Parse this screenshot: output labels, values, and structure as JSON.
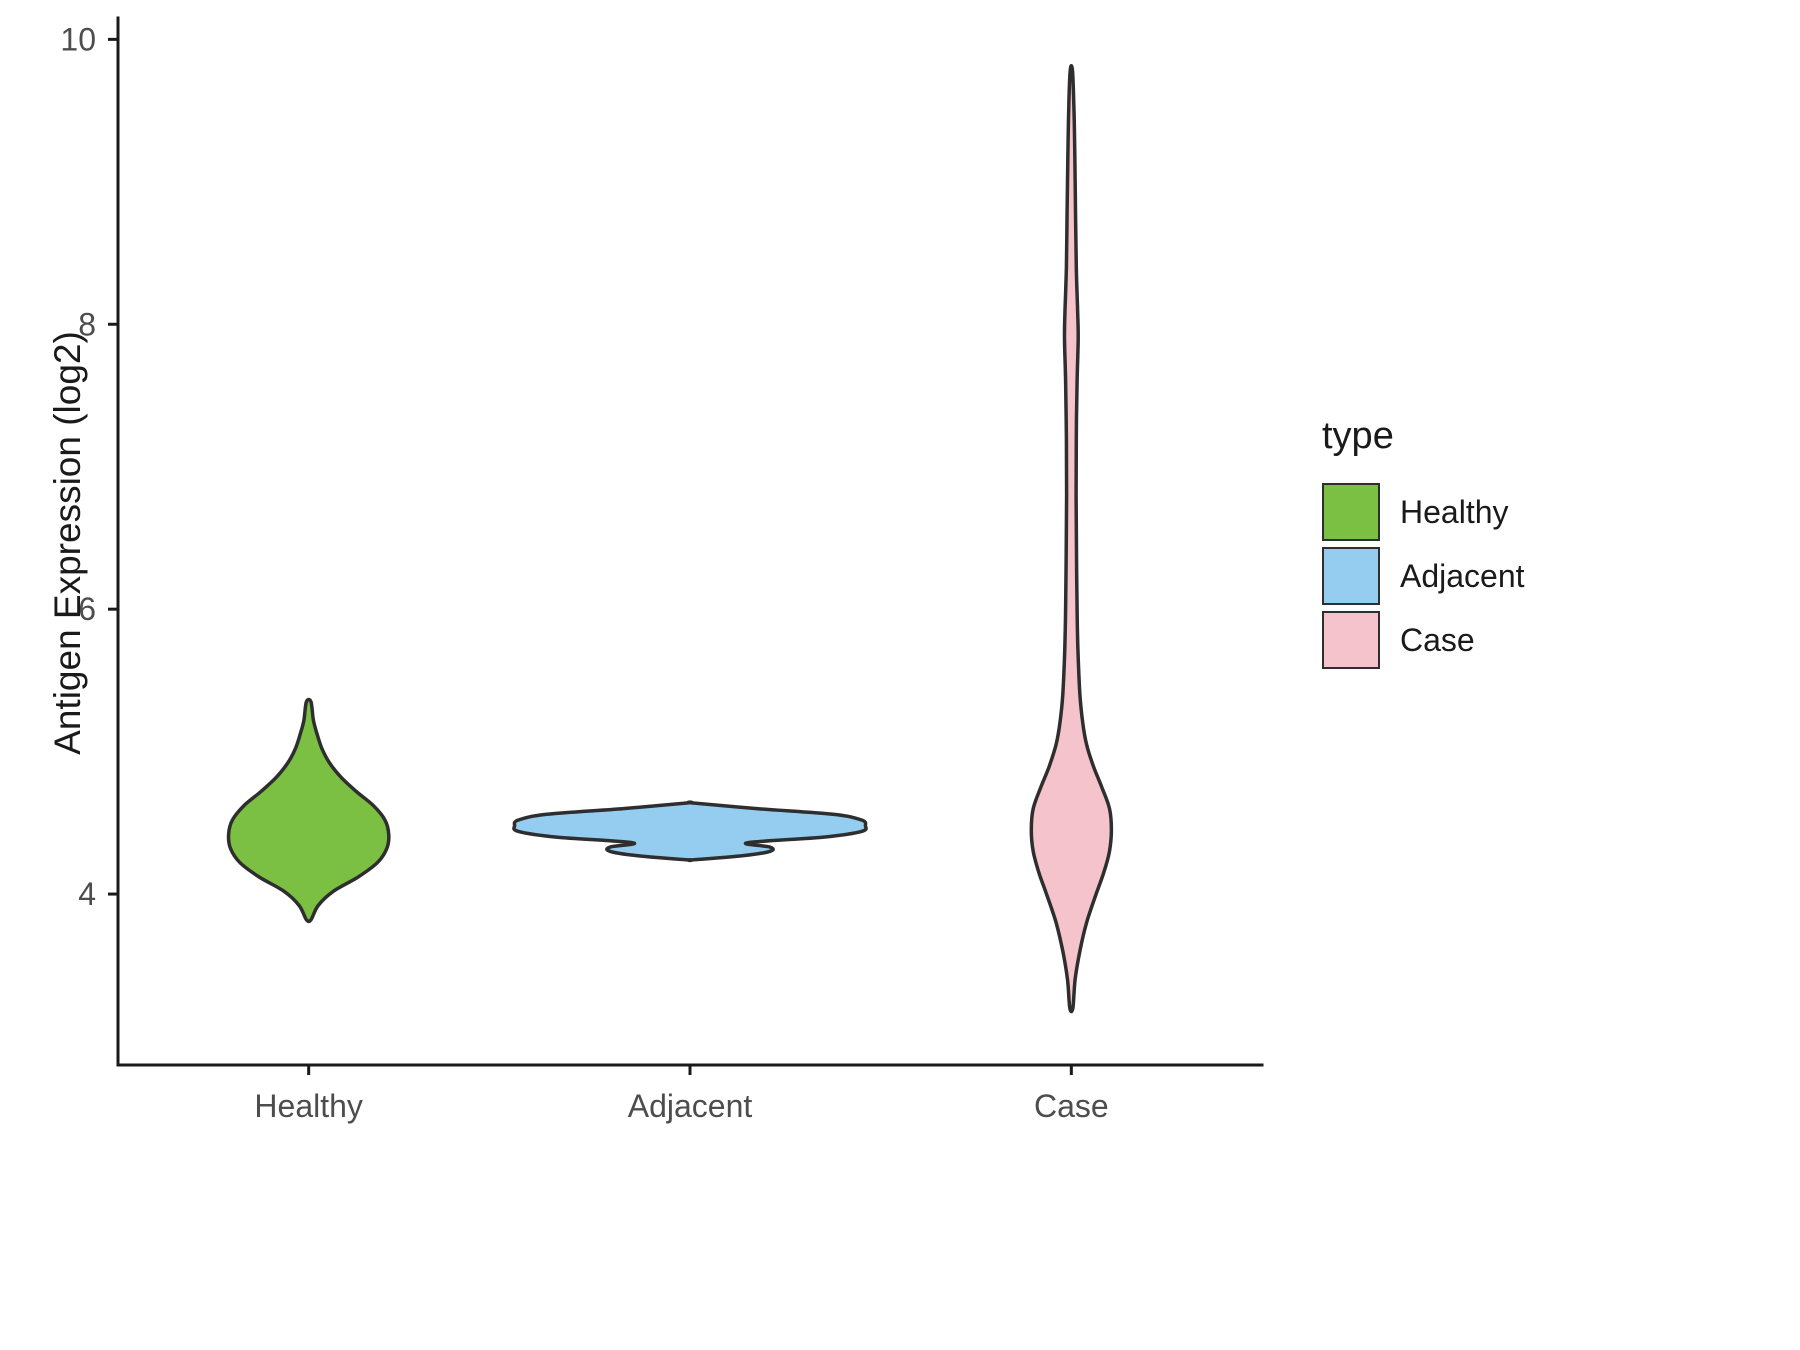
{
  "chart_data": {
    "type": "violin",
    "title": "",
    "xlabel": "",
    "ylabel": "Antigen Expression (log2)",
    "ylim": [
      2.8,
      10.15
    ],
    "yticks": [
      4,
      6,
      8,
      10
    ],
    "categories": [
      "Healthy",
      "Adjacent",
      "Case"
    ],
    "grid": false,
    "legend_position": "right",
    "legend": {
      "title": "type",
      "entries": [
        {
          "label": "Healthy",
          "color": "#7BC043"
        },
        {
          "label": "Adjacent",
          "color": "#94CDF0"
        },
        {
          "label": "Case",
          "color": "#F5C3CC"
        }
      ]
    },
    "style": {
      "outline_color": "#2e2e2e",
      "axis_color": "#1a1a1a",
      "tick_label_color": "#4d4d4d",
      "outline_width": 3.5,
      "axis_width": 3
    },
    "series": [
      {
        "name": "Healthy",
        "color": "#7BC043",
        "min": 3.82,
        "max": 5.35,
        "peak": 4.42,
        "profile": [
          [
            3.82,
            0.012
          ],
          [
            3.92,
            0.05
          ],
          [
            4.02,
            0.13
          ],
          [
            4.12,
            0.26
          ],
          [
            4.22,
            0.36
          ],
          [
            4.32,
            0.41
          ],
          [
            4.42,
            0.42
          ],
          [
            4.52,
            0.4
          ],
          [
            4.62,
            0.34
          ],
          [
            4.72,
            0.25
          ],
          [
            4.82,
            0.17
          ],
          [
            4.92,
            0.11
          ],
          [
            5.02,
            0.07
          ],
          [
            5.12,
            0.045
          ],
          [
            5.22,
            0.025
          ],
          [
            5.35,
            0.012
          ]
        ]
      },
      {
        "name": "Adjacent",
        "color": "#94CDF0",
        "min": 4.24,
        "max": 4.64,
        "peak": 4.48,
        "profile": [
          [
            4.24,
            0.01
          ],
          [
            4.27,
            0.28
          ],
          [
            4.3,
            0.42
          ],
          [
            4.33,
            0.42
          ],
          [
            4.36,
            0.3
          ],
          [
            4.4,
            0.7
          ],
          [
            4.44,
            0.9
          ],
          [
            4.48,
            0.92
          ],
          [
            4.52,
            0.9
          ],
          [
            4.56,
            0.75
          ],
          [
            4.6,
            0.35
          ],
          [
            4.64,
            0.01
          ]
        ]
      },
      {
        "name": "Case",
        "color": "#F5C3CC",
        "min": 3.2,
        "max": 9.78,
        "peak": 4.45,
        "profile": [
          [
            3.2,
            0.008
          ],
          [
            3.4,
            0.02
          ],
          [
            3.6,
            0.045
          ],
          [
            3.8,
            0.08
          ],
          [
            4.0,
            0.13
          ],
          [
            4.15,
            0.17
          ],
          [
            4.3,
            0.2
          ],
          [
            4.45,
            0.21
          ],
          [
            4.6,
            0.2
          ],
          [
            4.75,
            0.16
          ],
          [
            4.9,
            0.115
          ],
          [
            5.05,
            0.08
          ],
          [
            5.2,
            0.06
          ],
          [
            5.4,
            0.045
          ],
          [
            5.7,
            0.035
          ],
          [
            6.0,
            0.03
          ],
          [
            6.4,
            0.027
          ],
          [
            6.8,
            0.025
          ],
          [
            7.2,
            0.026
          ],
          [
            7.6,
            0.03
          ],
          [
            7.9,
            0.036
          ],
          [
            8.1,
            0.033
          ],
          [
            8.4,
            0.026
          ],
          [
            8.8,
            0.022
          ],
          [
            9.2,
            0.018
          ],
          [
            9.5,
            0.014
          ],
          [
            9.78,
            0.006
          ]
        ]
      }
    ]
  }
}
